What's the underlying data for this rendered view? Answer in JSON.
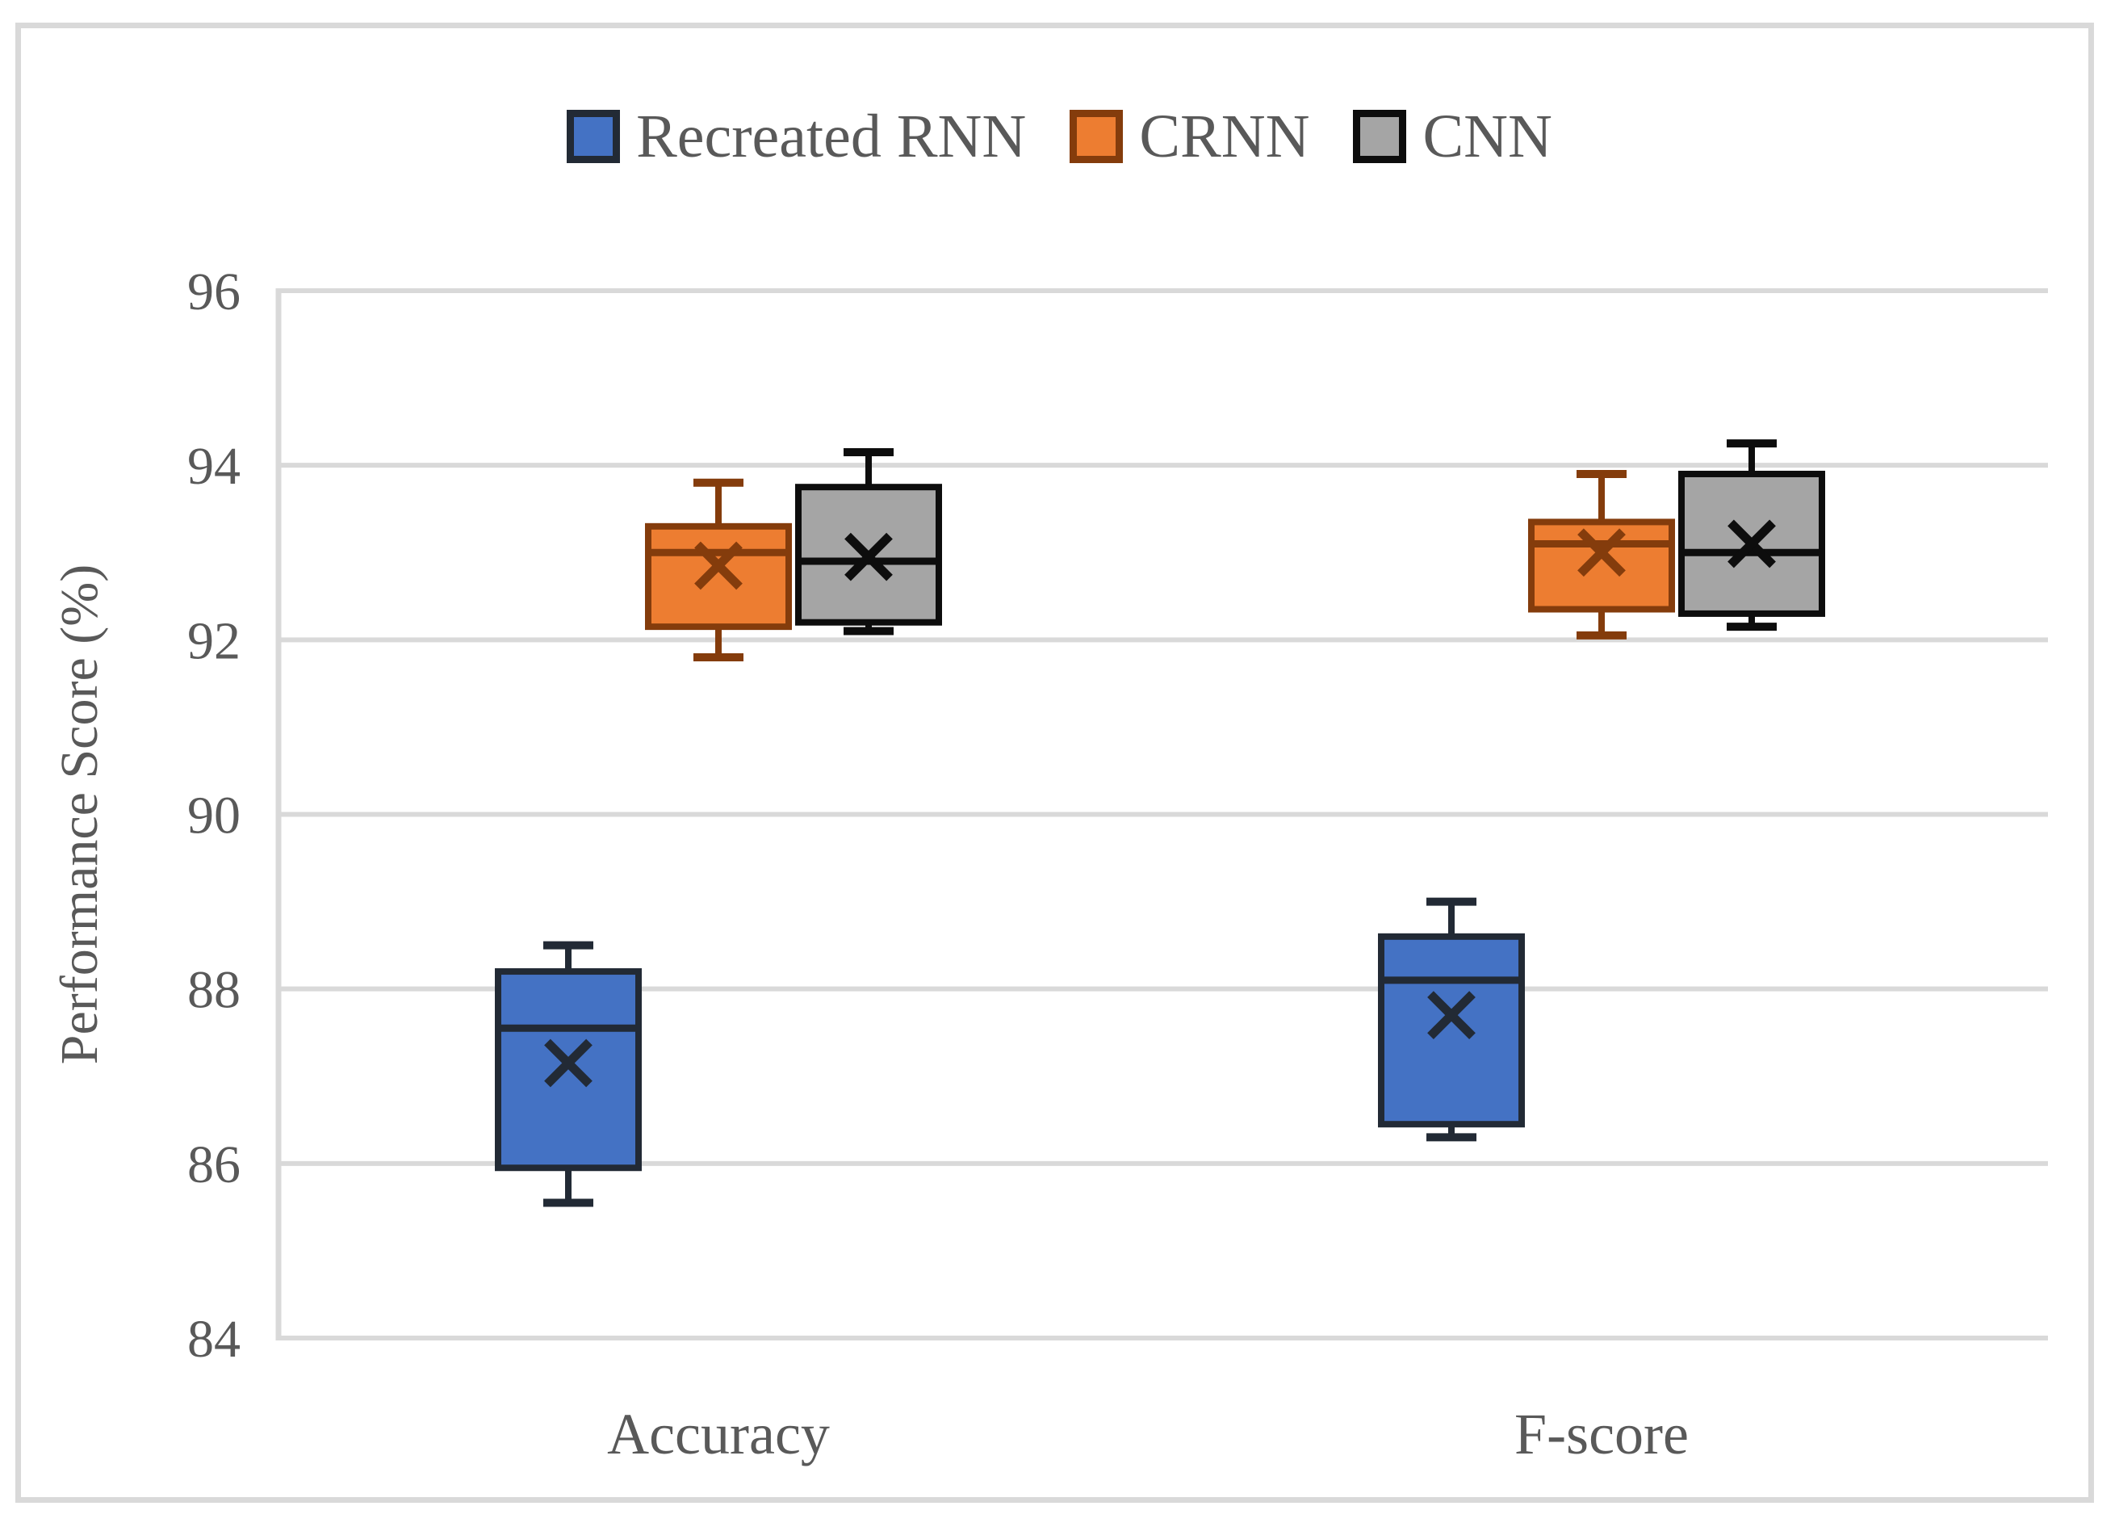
{
  "figure": {
    "background_color": "#FFFFFF",
    "border_color": "#D9D9D9"
  },
  "chart_data": {
    "type": "boxplot",
    "ylabel": "Performance Score (%)",
    "xlabel": "",
    "categories": [
      "Accuracy",
      "F-score"
    ],
    "y_axis": {
      "min": 84,
      "max": 96,
      "step": 2,
      "ticks": [
        96,
        94,
        92,
        90,
        88,
        86,
        84
      ]
    },
    "grid": true,
    "legend_position": "top-center",
    "style": {
      "gridline_color": "#D9D9D9",
      "axis_line_color": "#D9D9D9",
      "text_color": "#595959"
    },
    "series": [
      {
        "name": "Recreated RNN",
        "fill": "#4472C4",
        "stroke": "#222A35",
        "boxes": [
          {
            "category": "Accuracy",
            "whisker_low": 85.55,
            "q1": 85.95,
            "median": 87.55,
            "mean": 87.15,
            "q3": 88.2,
            "whisker_high": 88.5
          },
          {
            "category": "F-score",
            "whisker_low": 86.3,
            "q1": 86.45,
            "median": 88.1,
            "mean": 87.7,
            "q3": 88.6,
            "whisker_high": 89.0
          }
        ]
      },
      {
        "name": "CRNN",
        "fill": "#ED7D31",
        "stroke": "#843C0C",
        "boxes": [
          {
            "category": "Accuracy",
            "whisker_low": 91.8,
            "q1": 92.15,
            "median": 93.0,
            "mean": 92.85,
            "q3": 93.3,
            "whisker_high": 93.8
          },
          {
            "category": "F-score",
            "whisker_low": 92.05,
            "q1": 92.35,
            "median": 93.1,
            "mean": 93.0,
            "q3": 93.35,
            "whisker_high": 93.9
          }
        ]
      },
      {
        "name": "CNN",
        "fill": "#A5A5A5",
        "stroke": "#0D0D0D",
        "boxes": [
          {
            "category": "Accuracy",
            "whisker_low": 92.1,
            "q1": 92.2,
            "median": 92.9,
            "mean": 92.95,
            "q3": 93.75,
            "whisker_high": 94.15
          },
          {
            "category": "F-score",
            "whisker_low": 92.15,
            "q1": 92.3,
            "median": 93.0,
            "mean": 93.1,
            "q3": 93.9,
            "whisker_high": 94.25
          }
        ]
      }
    ]
  }
}
